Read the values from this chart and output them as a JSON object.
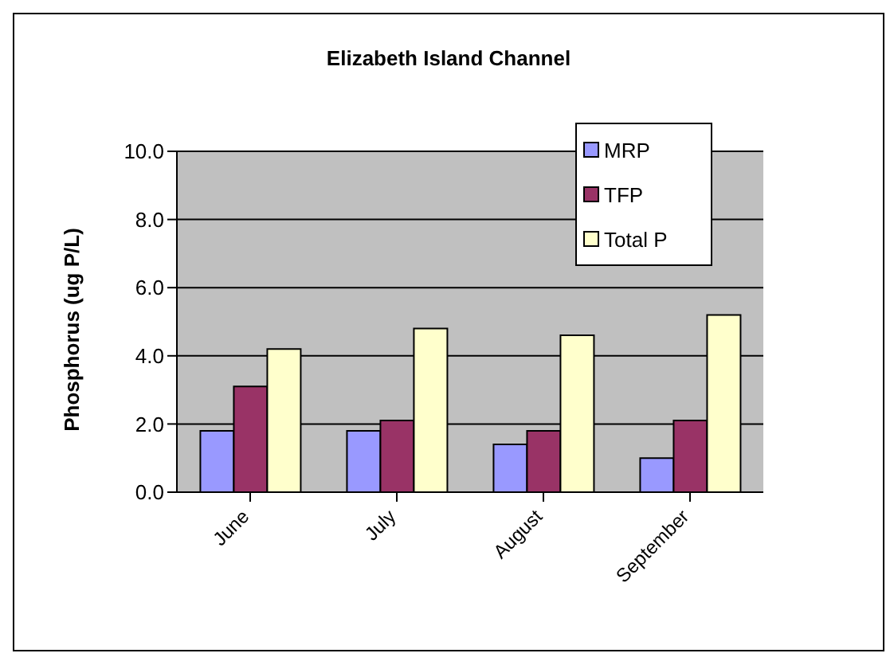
{
  "chart_data": {
    "type": "bar",
    "title": "Elizabeth Island Channel",
    "ylabel": "Phosphorus (ug P/L)",
    "categories": [
      "June",
      "July",
      "August",
      "September"
    ],
    "series": [
      {
        "name": "MRP",
        "color": "#9999ff",
        "values": [
          1.8,
          1.8,
          1.4,
          1.0
        ]
      },
      {
        "name": "TFP",
        "color": "#993366",
        "values": [
          3.1,
          2.1,
          1.8,
          2.1
        ]
      },
      {
        "name": "Total P",
        "color": "#ffffcc",
        "values": [
          4.2,
          4.8,
          4.6,
          5.2
        ]
      }
    ],
    "ylim": [
      0,
      10
    ],
    "yticks": [
      {
        "value": 0,
        "label": "0.0"
      },
      {
        "value": 2,
        "label": "2.0"
      },
      {
        "value": 4,
        "label": "4.0"
      },
      {
        "value": 6,
        "label": "6.0"
      },
      {
        "value": 8,
        "label": "8.0"
      },
      {
        "value": 10,
        "label": "10.0"
      }
    ],
    "grid": "y",
    "legend": "top right"
  }
}
